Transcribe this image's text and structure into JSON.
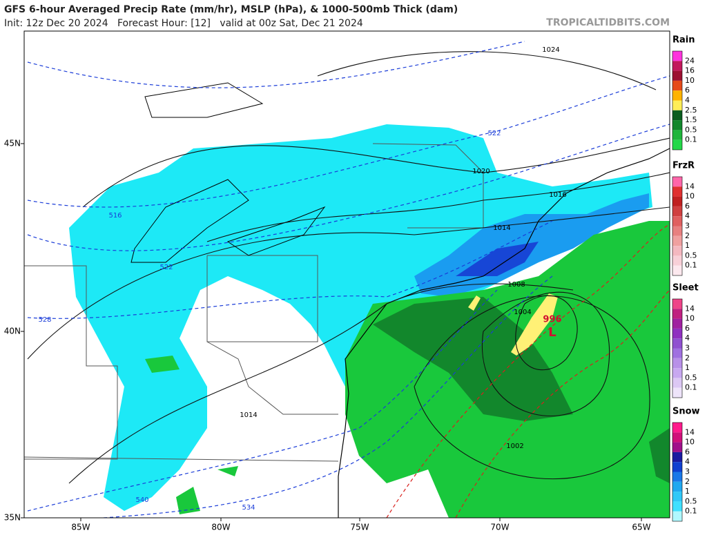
{
  "header": {
    "title": "GFS 6-hour Averaged Precip Rate (mm/hr), MSLP (hPa), & 1000-500mb Thick (dam)",
    "subtitle": "Init: 12z Dec 20 2024   Forecast Hour: [12]   valid at 00z Sat, Dec 21 2024",
    "site": "TROPICALTIDBITS.COM"
  },
  "map": {
    "lat_labels": [
      "45N",
      "40N",
      "35N"
    ],
    "lon_labels": [
      "85W",
      "80W",
      "75W",
      "70W",
      "65W"
    ],
    "isobar_labels": [
      "1024",
      "1020",
      "1016",
      "1014",
      "1008",
      "1004",
      "1002",
      "1014",
      "996"
    ],
    "low_label": "L",
    "thickness_labels": [
      "522",
      "516",
      "522",
      "528",
      "540",
      "534"
    ]
  },
  "legends": [
    {
      "title": "Rain",
      "levels": [
        "24",
        "16",
        "10",
        "6",
        "4",
        "2.5",
        "1.5",
        "0.5",
        "0.1"
      ]
    },
    {
      "title": "FrzR",
      "levels": [
        "14",
        "10",
        "6",
        "4",
        "3",
        "2",
        "1",
        "0.5",
        "0.1"
      ]
    },
    {
      "title": "Sleet",
      "levels": [
        "14",
        "10",
        "6",
        "4",
        "3",
        "2",
        "1",
        "0.5",
        "0.1"
      ]
    },
    {
      "title": "Snow",
      "levels": [
        "14",
        "10",
        "6",
        "4",
        "3",
        "2",
        "1",
        "0.5",
        "0.1"
      ]
    }
  ]
}
